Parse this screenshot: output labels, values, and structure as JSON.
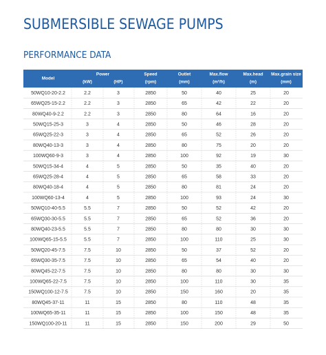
{
  "header": {
    "title": "SUBMERSIBLE SEWAGE PUMPS",
    "subtitle": "PERFORMANCE DATA"
  },
  "table": {
    "header_top": [
      "Model",
      "Power",
      "Speed",
      "Outlet",
      "Max.flow",
      "Max.head",
      "Max.grain size"
    ],
    "header_units": [
      "(kW)",
      "(HP)",
      "(rpm)",
      "(mm)",
      "(m³/h)",
      "(m)",
      "(mm)"
    ],
    "rows": [
      [
        "50WQ10-20-2.2",
        2.2,
        3,
        2850,
        50,
        40,
        25,
        20
      ],
      [
        "65WQ25-15-2.2",
        2.2,
        3,
        2850,
        65,
        42,
        22,
        20
      ],
      [
        "80WQ40-9-2.2",
        2.2,
        3,
        2850,
        80,
        64,
        16,
        20
      ],
      [
        "50WQ15-25-3",
        3,
        4,
        2850,
        50,
        46,
        28,
        20
      ],
      [
        "65WQ25-22-3",
        3,
        4,
        2850,
        65,
        52,
        26,
        20
      ],
      [
        "80WQ40-13-3",
        3,
        4,
        2850,
        80,
        75,
        20,
        20
      ],
      [
        "100WQ60-9-3",
        3,
        4,
        2850,
        100,
        92,
        19,
        30
      ],
      [
        "50WQ15-34-4",
        4,
        5,
        2850,
        50,
        35,
        40,
        20
      ],
      [
        "65WQ25-28-4",
        4,
        5,
        2850,
        65,
        58,
        33,
        20
      ],
      [
        "80WQ40-18-4",
        4,
        5,
        2850,
        80,
        81,
        24,
        20
      ],
      [
        "100WQ60-13-4",
        4,
        5,
        2850,
        100,
        93,
        24,
        30
      ],
      [
        "50WQ10-40-5.5",
        5.5,
        7,
        2850,
        50,
        52,
        42,
        20
      ],
      [
        "65WQ30-30-5.5",
        5.5,
        7,
        2850,
        65,
        52,
        36,
        20
      ],
      [
        "80WQ40-23-5.5",
        5.5,
        7,
        2850,
        80,
        80,
        30,
        30
      ],
      [
        "100WQ65-15-5.5",
        5.5,
        7,
        2850,
        100,
        110,
        25,
        30
      ],
      [
        "50WQ20-45-7.5",
        7.5,
        10,
        2850,
        50,
        37,
        52,
        20
      ],
      [
        "65WQ30-35-7.5",
        7.5,
        10,
        2850,
        65,
        54,
        40,
        20
      ],
      [
        "80WQ45-22-7.5",
        7.5,
        10,
        2850,
        80,
        80,
        30,
        30
      ],
      [
        "100WQ65-22-7.5",
        7.5,
        10,
        2850,
        100,
        110,
        30,
        35
      ],
      [
        "150WQ100-12-7.5",
        7.5,
        10,
        2850,
        150,
        160,
        20,
        35
      ],
      [
        "80WQ45-37-11",
        11,
        15,
        2850,
        80,
        110,
        48,
        35
      ],
      [
        "100WQ65-35-11",
        11,
        15,
        2850,
        100,
        150,
        48,
        35
      ],
      [
        "150WQ100-20-11",
        11,
        15,
        2850,
        150,
        200,
        29,
        50
      ]
    ]
  }
}
